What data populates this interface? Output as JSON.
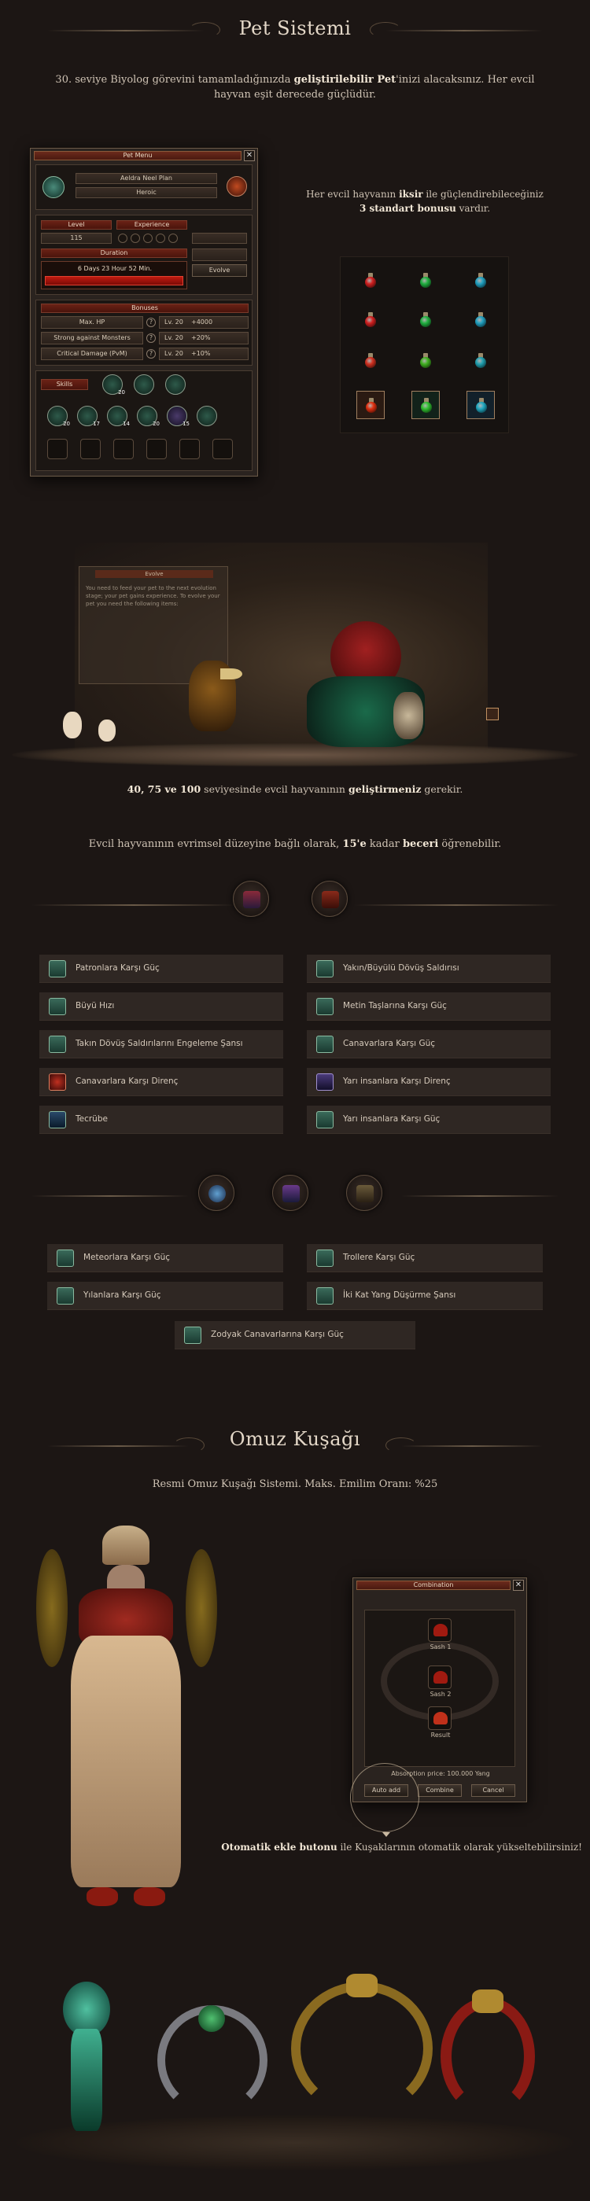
{
  "pet": {
    "title": "Pet Sistemi",
    "intro_line1": "30. seviye Biyolog görevini tamamladığınızda ",
    "intro_bold1": "geliştirilebilir Pet",
    "intro_line2": "'inizi alacaksınız. Her evcil hayvan eşit derecede güçlüdür.",
    "menu": {
      "title": "Pet Menu",
      "close": "✕",
      "name": "Aeldra Neel Plan",
      "rank": "Heroic",
      "level_label": "Level",
      "level_value": "115",
      "experience_label": "Experience",
      "duration_label": "Duration",
      "duration_value": "6 Days 23 Hour 52 Min.",
      "evolve_label": "Evolve",
      "bonuses_label": "Bonuses",
      "bonuses": [
        {
          "name": "Max. HP",
          "level": "Lv. 20",
          "value": "+4000"
        },
        {
          "name": "Strong against Monsters",
          "level": "Lv. 20",
          "value": "+20%"
        },
        {
          "name": "Critical Damage (PvM)",
          "level": "Lv. 20",
          "value": "+10%"
        }
      ],
      "skills_label": "Skills",
      "skill_levels": [
        "20",
        "",
        "",
        "20",
        "17",
        "14",
        "20",
        "15"
      ]
    },
    "potion_text_1": "Her evcil hayvanın ",
    "potion_bold_1": "iksir",
    "potion_text_2": " ile güçlendirebileceğiniz",
    "potion_bold_2": "3 standart bonusu",
    "potion_text_3": " vardır.",
    "potion_colors": [
      "#d02020",
      "#20b040",
      "#20a0c0",
      "#d02020",
      "#20b040",
      "#20a0c0",
      "#d03020",
      "#40b020",
      "#20a0b0",
      "#e03010",
      "#30c030",
      "#20a8c0"
    ],
    "evolve_window": {
      "title": "Evolve",
      "line1": "You need to feed your pet to the next evolution",
      "line2": "stage; your pet gains experience. To evolve your",
      "line3": "pet you need the following items:"
    },
    "evolve_text_bold": "40, 75 ve 100",
    "evolve_text_1": " seviyesinde evcil hayvanının ",
    "evolve_text_bold2": "geliştirmeniz",
    "evolve_text_2": " gerekir.",
    "skill_intro_1": "Evcil hayvanının evrimsel düzeyine bağlı olarak, ",
    "skill_intro_bold": "15'e",
    "skill_intro_2": " kadar ",
    "skill_intro_bold2": "beceri",
    "skill_intro_3": " öğrenebilir.",
    "abilities_left": [
      "Patronlara Karşı Güç",
      "Büyü Hızı",
      "Takın Dövüş Saldırılarını Engeleme Şansı",
      "Canavarlara Karşı Direnç",
      "Tecrübe"
    ],
    "abilities_right": [
      "Yakın/Büyülü Dövüş Saldırısı",
      "Metin Taşlarına Karşı Güç",
      "Canavarlara Karşı Güç",
      "Yarı insanlara Karşı Direnç",
      "Yarı insanlara Karşı Güç"
    ],
    "abilities2_left": [
      "Meteorlara Karşı Güç",
      "Yılanlara Karşı Güç"
    ],
    "abilities2_right": [
      "Trollere Karşı Güç",
      "İki Kat Yang Düşürme Şansı"
    ],
    "ability_center": "Zodyak Canavarlarına Karşı Güç"
  },
  "sash": {
    "title": "Omuz Kuşağı",
    "intro": "Resmi Omuz Kuşağı Sistemi. Maks. Emilim Oranı: %25",
    "window": {
      "title": "Combination",
      "close": "✕",
      "slot1": "Sash 1",
      "slot2": "Sash 2",
      "result": "Result",
      "price": "Absorption price: 100.000 Yang",
      "auto_add": "Auto add",
      "combine": "Combine",
      "cancel": "Cancel"
    },
    "auto_bold": "Otomatik ekle butonu",
    "auto_text": " ile Kuşaklarının otomatik olarak yükseltebilirsiniz!"
  }
}
